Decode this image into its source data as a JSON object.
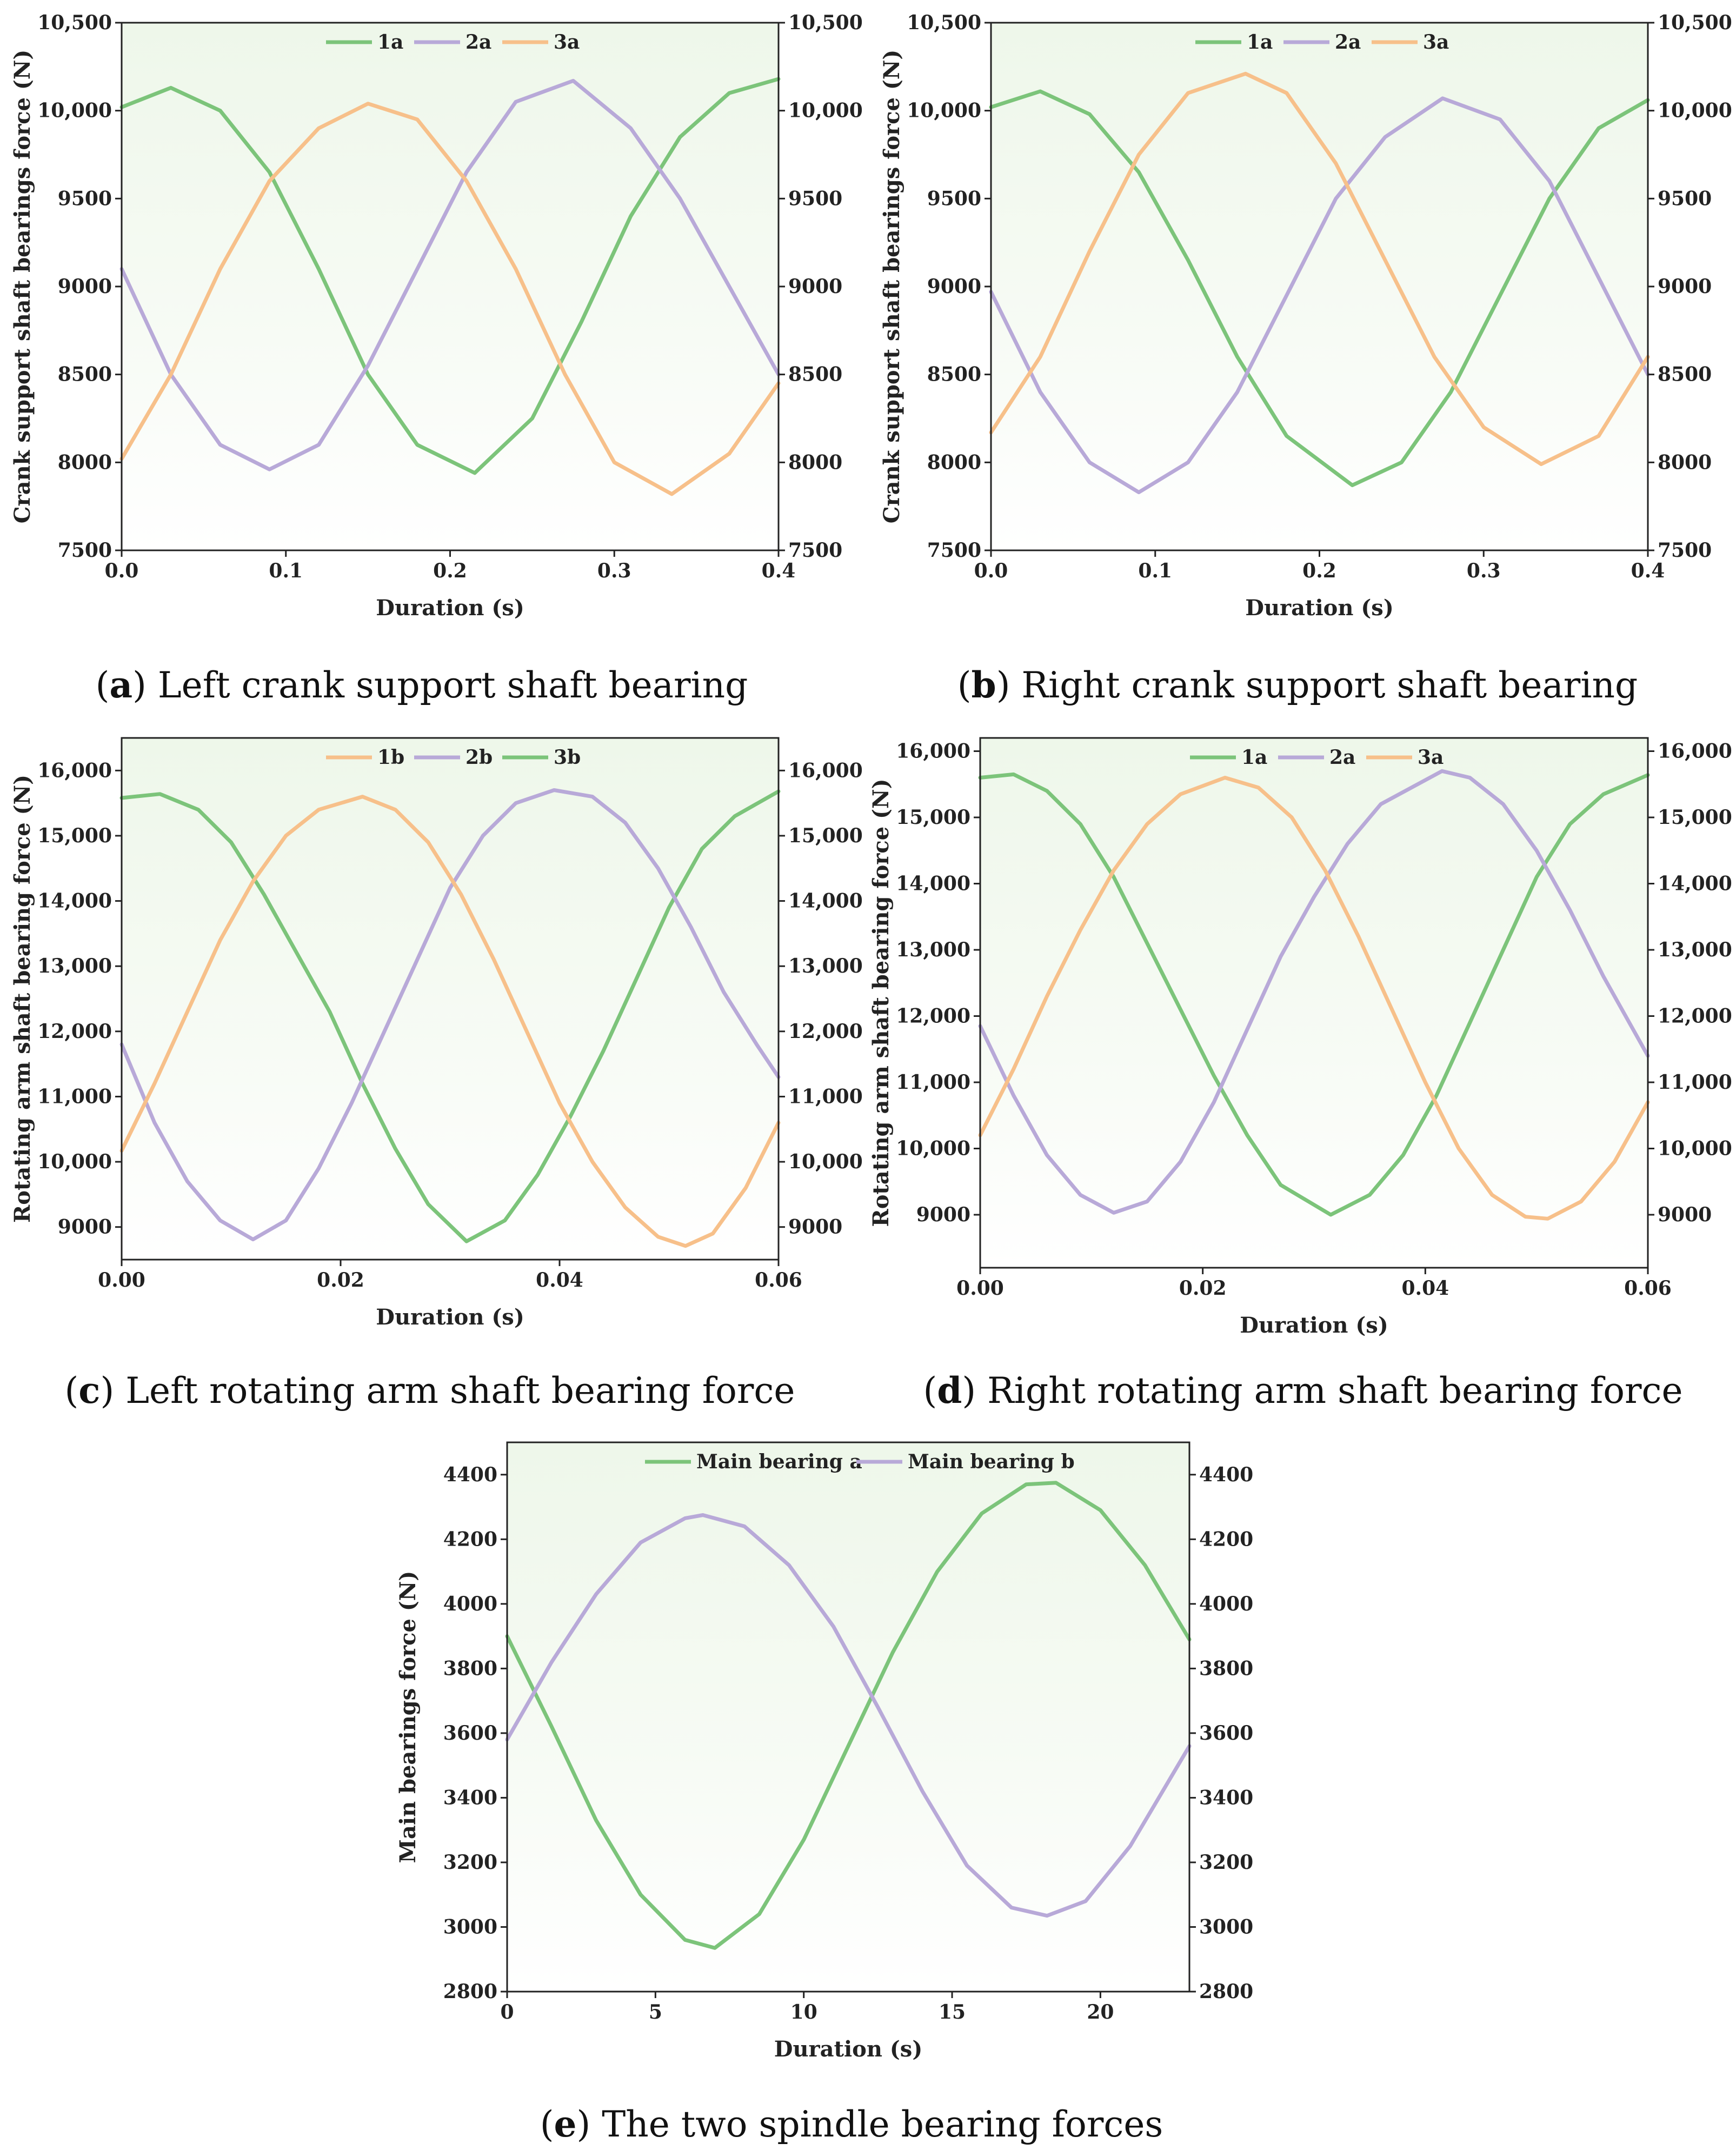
{
  "figure": {
    "panels": [
      {
        "caption": {
          "letter": "a",
          "text": " Left crank support shaft bearing"
        },
        "legend": [
          "1a",
          "2a",
          "3a"
        ]
      },
      {
        "caption": {
          "letter": "b",
          "text": " Right crank support shaft bearing"
        },
        "legend": [
          "1a",
          "2a",
          "3a"
        ]
      },
      {
        "caption": {
          "letter": "c",
          "text": " Left rotating arm shaft bearing force"
        },
        "legend": [
          "1b",
          "2b",
          "3b"
        ]
      },
      {
        "caption": {
          "letter": "d",
          "text": " Right rotating arm shaft bearing force"
        },
        "legend": [
          "1a",
          "2a",
          "3a"
        ]
      },
      {
        "caption": {
          "letter": "e",
          "text": " The two spindle bearing forces"
        },
        "legend": [
          "Main bearing a",
          "Main bearing b"
        ]
      }
    ]
  },
  "colors": {
    "green": "#7cc47a",
    "purple": "#b8a9d8",
    "orange": "#f7c08a",
    "bg_top": "#eef7ea",
    "bg_bottom": "#ffffff",
    "axis": "#222222"
  },
  "chart_data": [
    {
      "type": "line",
      "xlabel": "Duration (s)",
      "ylabel": "Crank support shaft bearings force (N)",
      "xlim": [
        0,
        0.4
      ],
      "ylim": [
        7500,
        10500
      ],
      "xticks": [
        0.0,
        0.1,
        0.2,
        0.3,
        0.4
      ],
      "xtick_labels": [
        "0.0",
        "0.1",
        "0.2",
        "0.3",
        "0.4"
      ],
      "yticks": [
        7500,
        8000,
        8500,
        9000,
        9500,
        10000,
        10500
      ],
      "ytick_labels": [
        "7500",
        "8000",
        "8500",
        "9000",
        "9500",
        "10,000",
        "10,500"
      ],
      "right_axis": true,
      "legend_position": "top-center",
      "series": [
        {
          "name": "1a",
          "color": "green",
          "x": [
            0,
            0.03,
            0.06,
            0.09,
            0.12,
            0.15,
            0.18,
            0.215,
            0.25,
            0.28,
            0.31,
            0.34,
            0.37,
            0.4
          ],
          "y": [
            10020,
            10130,
            10000,
            9650,
            9100,
            8500,
            8100,
            7940,
            8250,
            8800,
            9400,
            9850,
            10100,
            10180
          ]
        },
        {
          "name": "2a",
          "color": "purple",
          "x": [
            0,
            0.03,
            0.06,
            0.09,
            0.12,
            0.15,
            0.18,
            0.21,
            0.24,
            0.275,
            0.31,
            0.34,
            0.37,
            0.4
          ],
          "y": [
            9100,
            8500,
            8100,
            7960,
            8100,
            8550,
            9100,
            9650,
            10050,
            10170,
            9900,
            9500,
            9000,
            8500
          ]
        },
        {
          "name": "3a",
          "color": "orange",
          "x": [
            0,
            0.03,
            0.06,
            0.09,
            0.12,
            0.15,
            0.18,
            0.21,
            0.24,
            0.27,
            0.3,
            0.335,
            0.37,
            0.4
          ],
          "y": [
            8020,
            8500,
            9100,
            9600,
            9900,
            10040,
            9950,
            9600,
            9100,
            8500,
            8000,
            7820,
            8050,
            8450
          ]
        }
      ]
    },
    {
      "type": "line",
      "xlabel": "Duration (s)",
      "ylabel": "Crank support shaft bearings force (N)",
      "xlim": [
        0,
        0.4
      ],
      "ylim": [
        7500,
        10500
      ],
      "xticks": [
        0.0,
        0.1,
        0.2,
        0.3,
        0.4
      ],
      "xtick_labels": [
        "0.0",
        "0.1",
        "0.2",
        "0.3",
        "0.4"
      ],
      "yticks": [
        7500,
        8000,
        8500,
        9000,
        9500,
        10000,
        10500
      ],
      "ytick_labels": [
        "7500",
        "8000",
        "8500",
        "9000",
        "9500",
        "10,000",
        "10,500"
      ],
      "right_axis": true,
      "legend_position": "top-center",
      "series": [
        {
          "name": "1a",
          "color": "green",
          "x": [
            0,
            0.03,
            0.06,
            0.09,
            0.12,
            0.15,
            0.18,
            0.22,
            0.25,
            0.28,
            0.31,
            0.34,
            0.37,
            0.4
          ],
          "y": [
            10020,
            10110,
            9980,
            9650,
            9150,
            8600,
            8150,
            7870,
            8000,
            8400,
            8950,
            9500,
            9900,
            10060
          ]
        },
        {
          "name": "2a",
          "color": "purple",
          "x": [
            0,
            0.03,
            0.06,
            0.09,
            0.12,
            0.15,
            0.18,
            0.21,
            0.24,
            0.275,
            0.31,
            0.34,
            0.37,
            0.4
          ],
          "y": [
            8970,
            8400,
            8000,
            7830,
            8000,
            8400,
            8950,
            9500,
            9850,
            10070,
            9950,
            9600,
            9050,
            8500
          ]
        },
        {
          "name": "3a",
          "color": "orange",
          "x": [
            0,
            0.03,
            0.06,
            0.09,
            0.12,
            0.155,
            0.18,
            0.21,
            0.24,
            0.27,
            0.3,
            0.335,
            0.37,
            0.4
          ],
          "y": [
            8170,
            8600,
            9200,
            9750,
            10100,
            10210,
            10100,
            9700,
            9150,
            8600,
            8200,
            7990,
            8150,
            8600
          ]
        }
      ]
    },
    {
      "type": "line",
      "xlabel": "Duration (s)",
      "ylabel": "Rotating arm shaft bearing force (N)",
      "xlim": [
        0,
        0.06
      ],
      "ylim": [
        8500,
        16500
      ],
      "xticks": [
        0.0,
        0.02,
        0.04,
        0.06
      ],
      "xtick_labels": [
        "0.00",
        "0.02",
        "0.04",
        "0.06"
      ],
      "yticks": [
        9000,
        10000,
        11000,
        12000,
        13000,
        14000,
        15000,
        16000
      ],
      "ytick_labels": [
        "9000",
        "10,000",
        "11,000",
        "12,000",
        "13,000",
        "14,000",
        "15,000",
        "16,000"
      ],
      "right_axis": true,
      "legend_position": "top-center",
      "series": [
        {
          "name": "3b",
          "color": "green",
          "x": [
            0,
            0.0035,
            0.007,
            0.01,
            0.013,
            0.016,
            0.019,
            0.022,
            0.025,
            0.028,
            0.0315,
            0.035,
            0.038,
            0.041,
            0.044,
            0.047,
            0.05,
            0.053,
            0.056,
            0.06
          ],
          "y": [
            15580,
            15640,
            15400,
            14900,
            14100,
            13200,
            12300,
            11200,
            10200,
            9350,
            8780,
            9100,
            9800,
            10700,
            11700,
            12800,
            13900,
            14800,
            15300,
            15680
          ]
        },
        {
          "name": "2b",
          "color": "purple",
          "x": [
            0,
            0.003,
            0.006,
            0.009,
            0.012,
            0.015,
            0.018,
            0.021,
            0.024,
            0.027,
            0.03,
            0.033,
            0.036,
            0.0395,
            0.043,
            0.046,
            0.049,
            0.052,
            0.055,
            0.058,
            0.06
          ],
          "y": [
            11800,
            10600,
            9700,
            9100,
            8810,
            9100,
            9900,
            10900,
            12000,
            13100,
            14200,
            15000,
            15500,
            15700,
            15600,
            15200,
            14500,
            13600,
            12600,
            11800,
            11300
          ]
        },
        {
          "name": "1b",
          "color": "orange",
          "x": [
            0,
            0.003,
            0.006,
            0.009,
            0.012,
            0.015,
            0.018,
            0.022,
            0.025,
            0.028,
            0.031,
            0.034,
            0.037,
            0.04,
            0.043,
            0.046,
            0.049,
            0.0515,
            0.054,
            0.057,
            0.06
          ],
          "y": [
            10170,
            11200,
            12300,
            13400,
            14300,
            15000,
            15400,
            15600,
            15400,
            14900,
            14100,
            13100,
            12000,
            10900,
            10000,
            9300,
            8850,
            8710,
            8900,
            9600,
            10600
          ]
        }
      ]
    },
    {
      "type": "line",
      "xlabel": "Duration (s)",
      "ylabel": "Rotating arm shaft bearing force (N)",
      "xlim": [
        0,
        0.06
      ],
      "ylim": [
        8200,
        16200
      ],
      "xticks": [
        0.0,
        0.02,
        0.04,
        0.06
      ],
      "xtick_labels": [
        "0.00",
        "0.02",
        "0.04",
        "0.06"
      ],
      "yticks": [
        9000,
        10000,
        11000,
        12000,
        13000,
        14000,
        15000,
        16000
      ],
      "ytick_labels": [
        "9000",
        "10,000",
        "11,000",
        "12,000",
        "13,000",
        "14,000",
        "15,000",
        "16,000"
      ],
      "right_axis": true,
      "legend_position": "top-center",
      "series": [
        {
          "name": "1a",
          "color": "green",
          "x": [
            0,
            0.003,
            0.006,
            0.009,
            0.012,
            0.015,
            0.018,
            0.021,
            0.024,
            0.027,
            0.0315,
            0.035,
            0.038,
            0.041,
            0.044,
            0.047,
            0.05,
            0.053,
            0.056,
            0.06
          ],
          "y": [
            15600,
            15650,
            15400,
            14900,
            14100,
            13100,
            12100,
            11100,
            10200,
            9450,
            9000,
            9300,
            9900,
            10800,
            11900,
            13000,
            14100,
            14900,
            15350,
            15640
          ]
        },
        {
          "name": "2a",
          "color": "purple",
          "x": [
            0,
            0.003,
            0.006,
            0.009,
            0.012,
            0.015,
            0.018,
            0.021,
            0.024,
            0.027,
            0.03,
            0.033,
            0.036,
            0.0415,
            0.044,
            0.047,
            0.05,
            0.053,
            0.056,
            0.06
          ],
          "y": [
            11850,
            10800,
            9900,
            9300,
            9030,
            9200,
            9800,
            10700,
            11800,
            12900,
            13800,
            14600,
            15200,
            15700,
            15600,
            15200,
            14500,
            13600,
            12600,
            11400
          ]
        },
        {
          "name": "3a",
          "color": "orange",
          "x": [
            0,
            0.003,
            0.006,
            0.009,
            0.012,
            0.015,
            0.018,
            0.022,
            0.025,
            0.028,
            0.031,
            0.034,
            0.037,
            0.04,
            0.043,
            0.046,
            0.049,
            0.051,
            0.054,
            0.057,
            0.06
          ],
          "y": [
            10200,
            11200,
            12300,
            13300,
            14200,
            14900,
            15350,
            15600,
            15450,
            15000,
            14200,
            13200,
            12100,
            11000,
            10000,
            9300,
            8970,
            8940,
            9200,
            9800,
            10700
          ]
        }
      ]
    },
    {
      "type": "line",
      "xlabel": "Duration (s)",
      "ylabel": "Main bearings force (N)",
      "xlim": [
        0,
        23
      ],
      "ylim": [
        2800,
        4500
      ],
      "xticks": [
        0,
        5,
        10,
        15,
        20
      ],
      "xtick_labels": [
        "0",
        "5",
        "10",
        "15",
        "20"
      ],
      "yticks": [
        2800,
        3000,
        3200,
        3400,
        3600,
        3800,
        4000,
        4200,
        4400
      ],
      "ytick_labels": [
        "2800",
        "3000",
        "3200",
        "3400",
        "3600",
        "3800",
        "4000",
        "4200",
        "4400"
      ],
      "right_axis": true,
      "legend_position": "top-center",
      "series": [
        {
          "name": "Main bearing a",
          "color": "green",
          "x": [
            0,
            1.5,
            3,
            4.5,
            6,
            7,
            8.5,
            10,
            11.5,
            13,
            14.5,
            16,
            17.5,
            18.5,
            20,
            21.5,
            23
          ],
          "y": [
            3900,
            3620,
            3330,
            3100,
            2960,
            2935,
            3040,
            3270,
            3560,
            3850,
            4100,
            4280,
            4370,
            4375,
            4290,
            4120,
            3890
          ]
        },
        {
          "name": "Main bearing b",
          "color": "purple",
          "x": [
            0,
            1.5,
            3,
            4.5,
            6,
            6.6,
            8,
            9.5,
            11,
            12.5,
            14,
            15.5,
            17,
            18.2,
            19.5,
            21,
            23
          ],
          "y": [
            3580,
            3820,
            4030,
            4190,
            4265,
            4275,
            4240,
            4120,
            3930,
            3680,
            3420,
            3190,
            3060,
            3035,
            3080,
            3250,
            3560
          ]
        }
      ]
    }
  ]
}
